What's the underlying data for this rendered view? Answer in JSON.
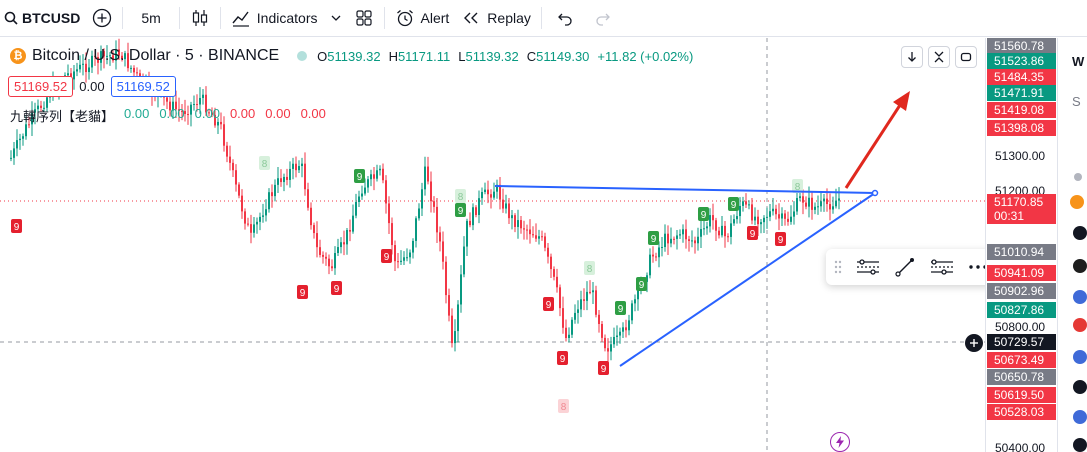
{
  "toolbar": {
    "symbol": "BTCUSD",
    "interval": "5m",
    "indicators_label": "Indicators",
    "alert_label": "Alert",
    "replay_label": "Replay"
  },
  "legend": {
    "title": "Bitcoin / U.S. Dollar · 5 · BINANCE",
    "logo": "₿",
    "o_label": "O",
    "o": "51139.32",
    "h_label": "H",
    "h": "51171.11",
    "l_label": "L",
    "l": "51139.32",
    "c_label": "C",
    "c": "51149.30",
    "change": "+11.82 (+0.02%)"
  },
  "price_boxes": {
    "sell": "51169.52",
    "spread": "0.00",
    "buy": "51169.52"
  },
  "indicator": {
    "name": "九轉序列【老貓】",
    "values": [
      "0.00",
      "0.00",
      "0.00",
      "0.00",
      "0.00",
      "0.00"
    ]
  },
  "price_scale": {
    "ticks": [
      "51300.00",
      "51200.00",
      "50400.00"
    ],
    "labels": [
      {
        "text": "51560.78",
        "kind": "gray"
      },
      {
        "text": "51523.86",
        "kind": "g"
      },
      {
        "text": "51484.35",
        "kind": "r"
      },
      {
        "text": "51471.91",
        "kind": "g"
      },
      {
        "text": "51419.08",
        "kind": "r"
      },
      {
        "text": "51398.08",
        "kind": "r"
      },
      {
        "text": "51170.85",
        "sub": "00:31",
        "kind": "r"
      },
      {
        "text": "51010.94",
        "kind": "gray"
      },
      {
        "text": "50941.09",
        "kind": "r"
      },
      {
        "text": "50902.96",
        "kind": "gray"
      },
      {
        "text": "50827.86",
        "kind": "g"
      },
      {
        "text": "50800.00",
        "kind": "plain"
      },
      {
        "text": "50729.57",
        "kind": "dark"
      },
      {
        "text": "50673.49",
        "kind": "r"
      },
      {
        "text": "50650.78",
        "kind": "gray"
      },
      {
        "text": "50619.50",
        "kind": "r"
      },
      {
        "text": "50528.03",
        "kind": "r"
      }
    ]
  },
  "markers": [
    "9",
    "9",
    "9",
    "9",
    "9",
    "9",
    "9",
    "9",
    "9",
    "9",
    "9",
    "9",
    "9",
    "9",
    "9",
    "9",
    "8",
    "8",
    "8",
    "8",
    "8"
  ],
  "colors": {
    "up": "#089981",
    "down": "#f23645",
    "trendline": "#2962ff",
    "arrow": "#e0281e"
  },
  "icons": [
    "search-icon",
    "plus-icon",
    "candles-icon",
    "indicators-icon",
    "layout-grid-icon",
    "alarm-icon",
    "replay-icon",
    "undo-icon",
    "redo-icon"
  ]
}
